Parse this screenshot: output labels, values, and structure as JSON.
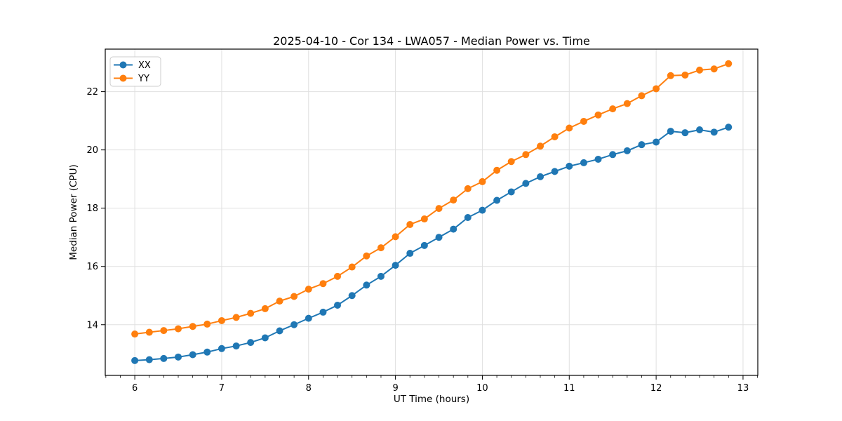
{
  "chart_data": {
    "type": "line",
    "title": "2025-04-10 - Cor 134 - LWA057 - Median Power vs. Time",
    "xlabel": "UT Time (hours)",
    "ylabel": "Median Power (CPU)",
    "xlim": [
      5.66,
      13.17
    ],
    "ylim": [
      12.26,
      23.46
    ],
    "xticks": [
      6,
      7,
      8,
      9,
      10,
      11,
      12,
      13
    ],
    "yticks": [
      14,
      16,
      18,
      20,
      22
    ],
    "minor_x_subdivisions_per_hour": 6,
    "grid": true,
    "grid_color": "#e0e0e0",
    "spine_color": "#000000",
    "background": "#ffffff",
    "legend_position": "upper-left",
    "marker": "circle",
    "x": [
      6.0,
      6.167,
      6.333,
      6.5,
      6.667,
      6.833,
      7.0,
      7.167,
      7.333,
      7.5,
      7.667,
      7.833,
      8.0,
      8.167,
      8.333,
      8.5,
      8.667,
      8.833,
      9.0,
      9.167,
      9.333,
      9.5,
      9.667,
      9.833,
      10.0,
      10.167,
      10.333,
      10.5,
      10.667,
      10.833,
      11.0,
      11.167,
      11.333,
      11.5,
      11.667,
      11.833,
      12.0,
      12.167,
      12.333,
      12.5,
      12.667,
      12.833
    ],
    "series": [
      {
        "name": "XX",
        "color": "#1f77b4",
        "values": [
          12.77,
          12.8,
          12.84,
          12.89,
          12.97,
          13.06,
          13.18,
          13.27,
          13.39,
          13.55,
          13.79,
          14.0,
          14.22,
          14.43,
          14.67,
          15.0,
          15.36,
          15.66,
          16.04,
          16.45,
          16.72,
          17.0,
          17.28,
          17.68,
          17.93,
          18.27,
          18.56,
          18.85,
          19.08,
          19.26,
          19.44,
          19.56,
          19.68,
          19.84,
          19.97,
          20.18,
          20.27,
          20.64,
          20.59,
          20.69,
          20.61,
          20.78
        ]
      },
      {
        "name": "YY",
        "color": "#ff7f0e",
        "values": [
          13.68,
          13.74,
          13.8,
          13.86,
          13.94,
          14.02,
          14.14,
          14.25,
          14.39,
          14.55,
          14.81,
          14.97,
          15.22,
          15.41,
          15.66,
          15.98,
          16.36,
          16.64,
          17.02,
          17.44,
          17.63,
          17.99,
          18.28,
          18.67,
          18.91,
          19.3,
          19.6,
          19.84,
          20.13,
          20.45,
          20.75,
          20.98,
          21.2,
          21.41,
          21.59,
          21.86,
          22.1,
          22.55,
          22.57,
          22.74,
          22.78,
          22.96
        ]
      }
    ]
  }
}
